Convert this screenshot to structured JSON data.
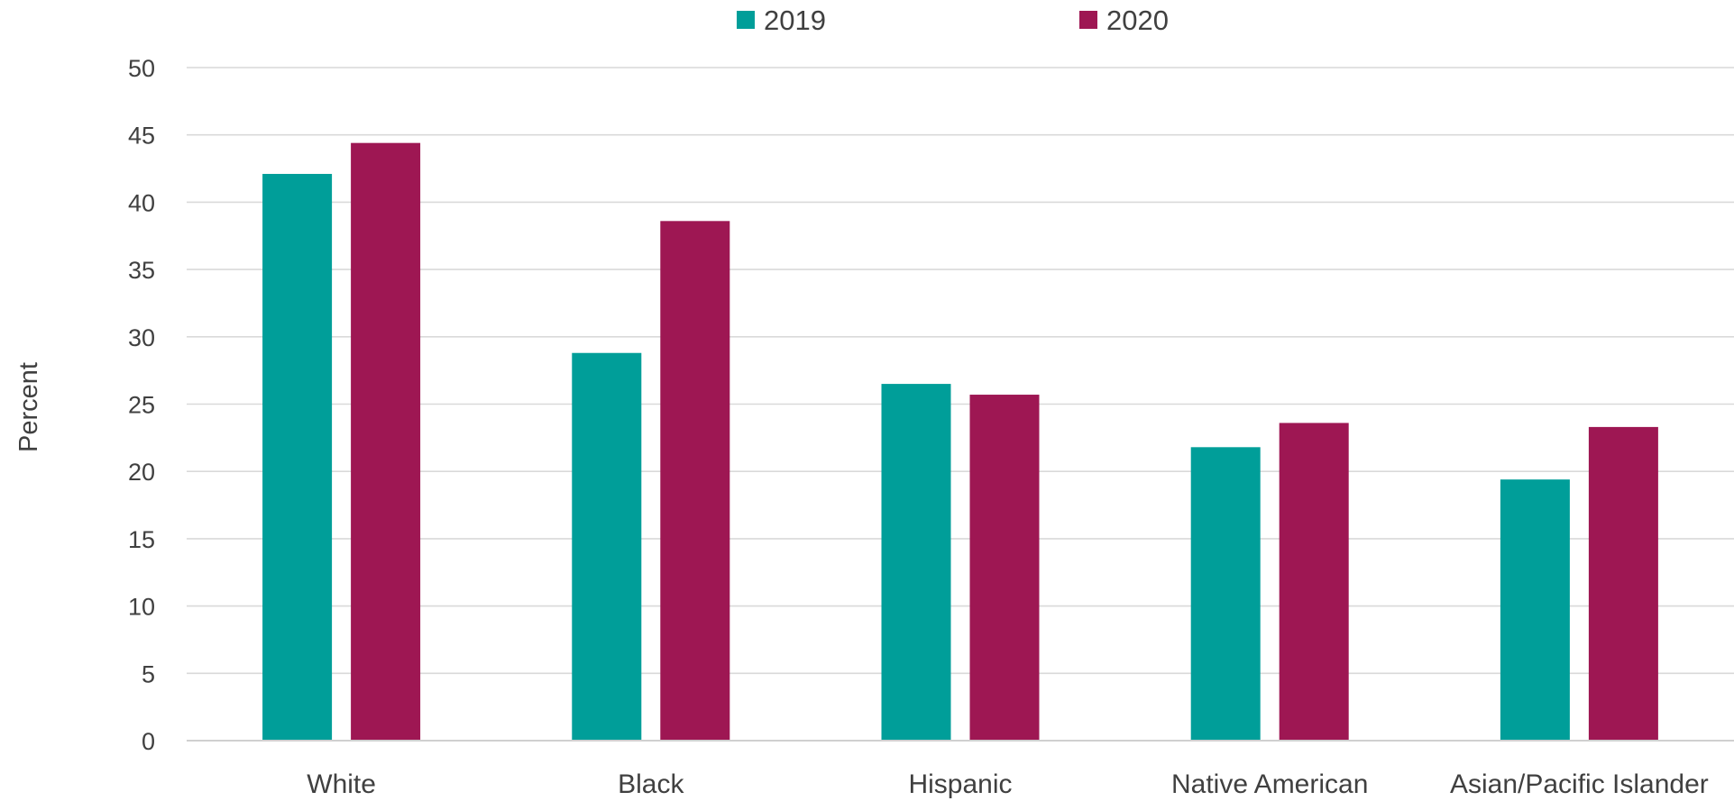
{
  "chart_data": {
    "type": "bar",
    "title": "",
    "xlabel": "",
    "ylabel": "Percent",
    "ylim": [
      0,
      50
    ],
    "yticks": [
      0,
      5,
      10,
      15,
      20,
      25,
      30,
      35,
      40,
      45,
      50
    ],
    "grid": true,
    "legend_position": "top-center",
    "categories": [
      "White",
      "Black",
      "Hispanic",
      "Native American",
      "Asian/Pacific Islander"
    ],
    "series": [
      {
        "name": "2019",
        "color": "#009e99",
        "values": [
          42.1,
          28.8,
          26.5,
          21.8,
          19.4
        ]
      },
      {
        "name": "2020",
        "color": "#9e1753",
        "values": [
          44.4,
          38.6,
          25.7,
          23.6,
          23.3
        ]
      }
    ]
  }
}
